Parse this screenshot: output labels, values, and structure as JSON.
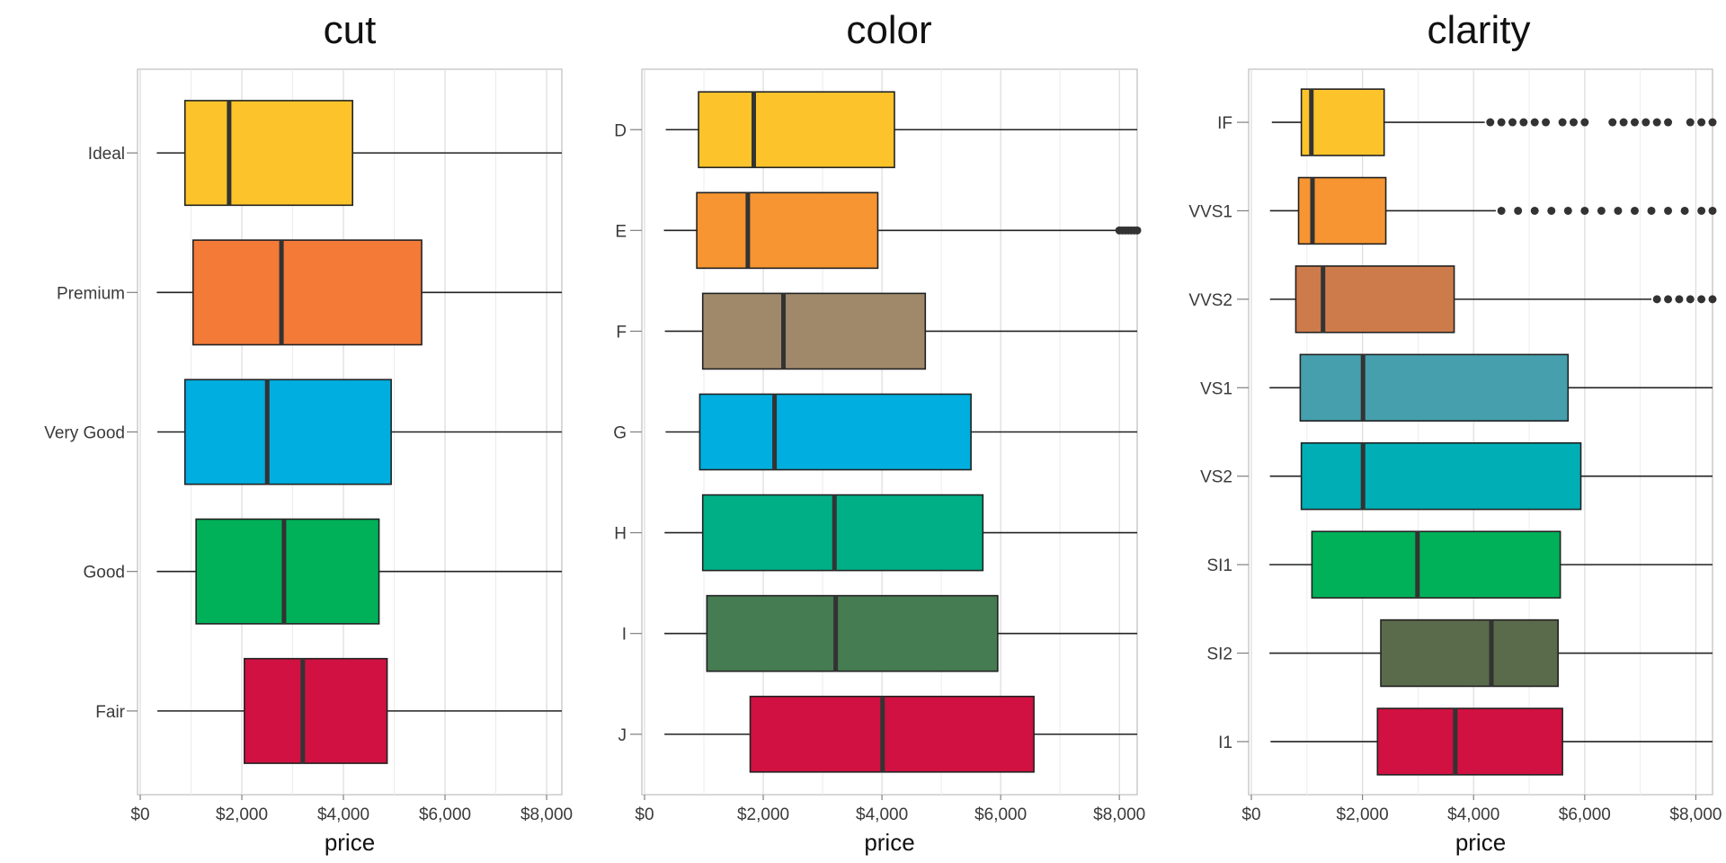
{
  "chart_data": [
    {
      "type": "boxplot",
      "title": "cut",
      "xlabel": "price",
      "ylabel": "",
      "xlim": [
        0,
        8300
      ],
      "x_ticks": [
        0,
        2000,
        4000,
        6000,
        8000
      ],
      "x_tick_labels": [
        "$0",
        "$2,000",
        "$4,000",
        "$6,000",
        "$8,000"
      ],
      "grid": true,
      "categories": [
        "Ideal",
        "Premium",
        "Very Good",
        "Good",
        "Fair"
      ],
      "colors": [
        "#FCC42A",
        "#F47A38",
        "#00AEDF",
        "#00B159",
        "#D11141"
      ],
      "series": [
        {
          "category": "Ideal",
          "whisker_low": 326,
          "q1": 880,
          "median": 1750,
          "q3": 4180,
          "whisker_high": 8300,
          "outliers": []
        },
        {
          "category": "Premium",
          "whisker_low": 326,
          "q1": 1040,
          "median": 2780,
          "q3": 5540,
          "whisker_high": 8300,
          "outliers": []
        },
        {
          "category": "Very Good",
          "whisker_low": 336,
          "q1": 880,
          "median": 2500,
          "q3": 4940,
          "whisker_high": 8300,
          "outliers": []
        },
        {
          "category": "Good",
          "whisker_low": 327,
          "q1": 1100,
          "median": 2830,
          "q3": 4700,
          "whisker_high": 8300,
          "outliers": []
        },
        {
          "category": "Fair",
          "whisker_low": 337,
          "q1": 2050,
          "median": 3200,
          "q3": 4860,
          "whisker_high": 8300,
          "outliers": []
        }
      ]
    },
    {
      "type": "boxplot",
      "title": "color",
      "xlabel": "price",
      "ylabel": "",
      "xlim": [
        0,
        8300
      ],
      "x_ticks": [
        0,
        2000,
        4000,
        6000,
        8000
      ],
      "x_tick_labels": [
        "$0",
        "$2,000",
        "$4,000",
        "$6,000",
        "$8,000"
      ],
      "grid": true,
      "categories": [
        "D",
        "E",
        "F",
        "G",
        "H",
        "I",
        "J"
      ],
      "colors": [
        "#FCC42A",
        "#F69531",
        "#A0896B",
        "#00AEDF",
        "#00AF86",
        "#467C52",
        "#D11141"
      ],
      "series": [
        {
          "category": "D",
          "whisker_low": 357,
          "q1": 910,
          "median": 1840,
          "q3": 4210,
          "whisker_high": 8300,
          "outliers": []
        },
        {
          "category": "E",
          "whisker_low": 326,
          "q1": 880,
          "median": 1740,
          "q3": 3930,
          "whisker_high": 8300,
          "outliers": [
            8000,
            8050,
            8100,
            8150,
            8200,
            8250,
            8300
          ]
        },
        {
          "category": "F",
          "whisker_low": 342,
          "q1": 980,
          "median": 2340,
          "q3": 4730,
          "whisker_high": 8300,
          "outliers": []
        },
        {
          "category": "G",
          "whisker_low": 354,
          "q1": 930,
          "median": 2190,
          "q3": 5500,
          "whisker_high": 8300,
          "outliers": []
        },
        {
          "category": "H",
          "whisker_low": 337,
          "q1": 980,
          "median": 3200,
          "q3": 5700,
          "whisker_high": 8300,
          "outliers": []
        },
        {
          "category": "I",
          "whisker_low": 334,
          "q1": 1050,
          "median": 3220,
          "q3": 5950,
          "whisker_high": 8300,
          "outliers": []
        },
        {
          "category": "J",
          "whisker_low": 335,
          "q1": 1780,
          "median": 4010,
          "q3": 6560,
          "whisker_high": 8300,
          "outliers": []
        }
      ]
    },
    {
      "type": "boxplot",
      "title": "clarity",
      "xlabel": "price",
      "ylabel": "",
      "xlim": [
        0,
        8300
      ],
      "x_ticks": [
        0,
        2000,
        4000,
        6000,
        8000
      ],
      "x_tick_labels": [
        "$0",
        "$2,000",
        "$4,000",
        "$6,000",
        "$8,000"
      ],
      "grid": true,
      "categories": [
        "IF",
        "VVS1",
        "VVS2",
        "VS1",
        "VS2",
        "SI1",
        "SI2",
        "I1"
      ],
      "colors": [
        "#FCC42A",
        "#F69531",
        "#CE7B4C",
        "#469FAD",
        "#00AFB5",
        "#00B159",
        "#5A6B4C",
        "#D11141"
      ],
      "series": [
        {
          "category": "IF",
          "whisker_low": 369,
          "q1": 900,
          "median": 1080,
          "q3": 2390,
          "whisker_high": 4200,
          "outliers": [
            4300,
            4500,
            4700,
            4900,
            5100,
            5300,
            5600,
            5800,
            6000,
            6500,
            6700,
            6900,
            7100,
            7300,
            7500,
            7900,
            8100,
            8300
          ]
        },
        {
          "category": "VVS1",
          "whisker_low": 336,
          "q1": 850,
          "median": 1100,
          "q3": 2420,
          "whisker_high": 4400,
          "outliers": [
            4500,
            4800,
            5100,
            5400,
            5700,
            6000,
            6300,
            6600,
            6900,
            7200,
            7500,
            7800,
            8100,
            8300
          ]
        },
        {
          "category": "VVS2",
          "whisker_low": 336,
          "q1": 800,
          "median": 1290,
          "q3": 3650,
          "whisker_high": 7200,
          "outliers": [
            7300,
            7500,
            7700,
            7900,
            8100,
            8300
          ]
        },
        {
          "category": "VS1",
          "whisker_low": 327,
          "q1": 880,
          "median": 2010,
          "q3": 5700,
          "whisker_high": 8300,
          "outliers": []
        },
        {
          "category": "VS2",
          "whisker_low": 334,
          "q1": 900,
          "median": 2010,
          "q3": 5930,
          "whisker_high": 8300,
          "outliers": []
        },
        {
          "category": "SI1",
          "whisker_low": 326,
          "q1": 1090,
          "median": 2990,
          "q3": 5560,
          "whisker_high": 8300,
          "outliers": []
        },
        {
          "category": "SI2",
          "whisker_low": 326,
          "q1": 2330,
          "median": 4320,
          "q3": 5520,
          "whisker_high": 8300,
          "outliers": []
        },
        {
          "category": "I1",
          "whisker_low": 345,
          "q1": 2270,
          "median": 3670,
          "q3": 5600,
          "whisker_high": 8300,
          "outliers": []
        }
      ]
    }
  ]
}
